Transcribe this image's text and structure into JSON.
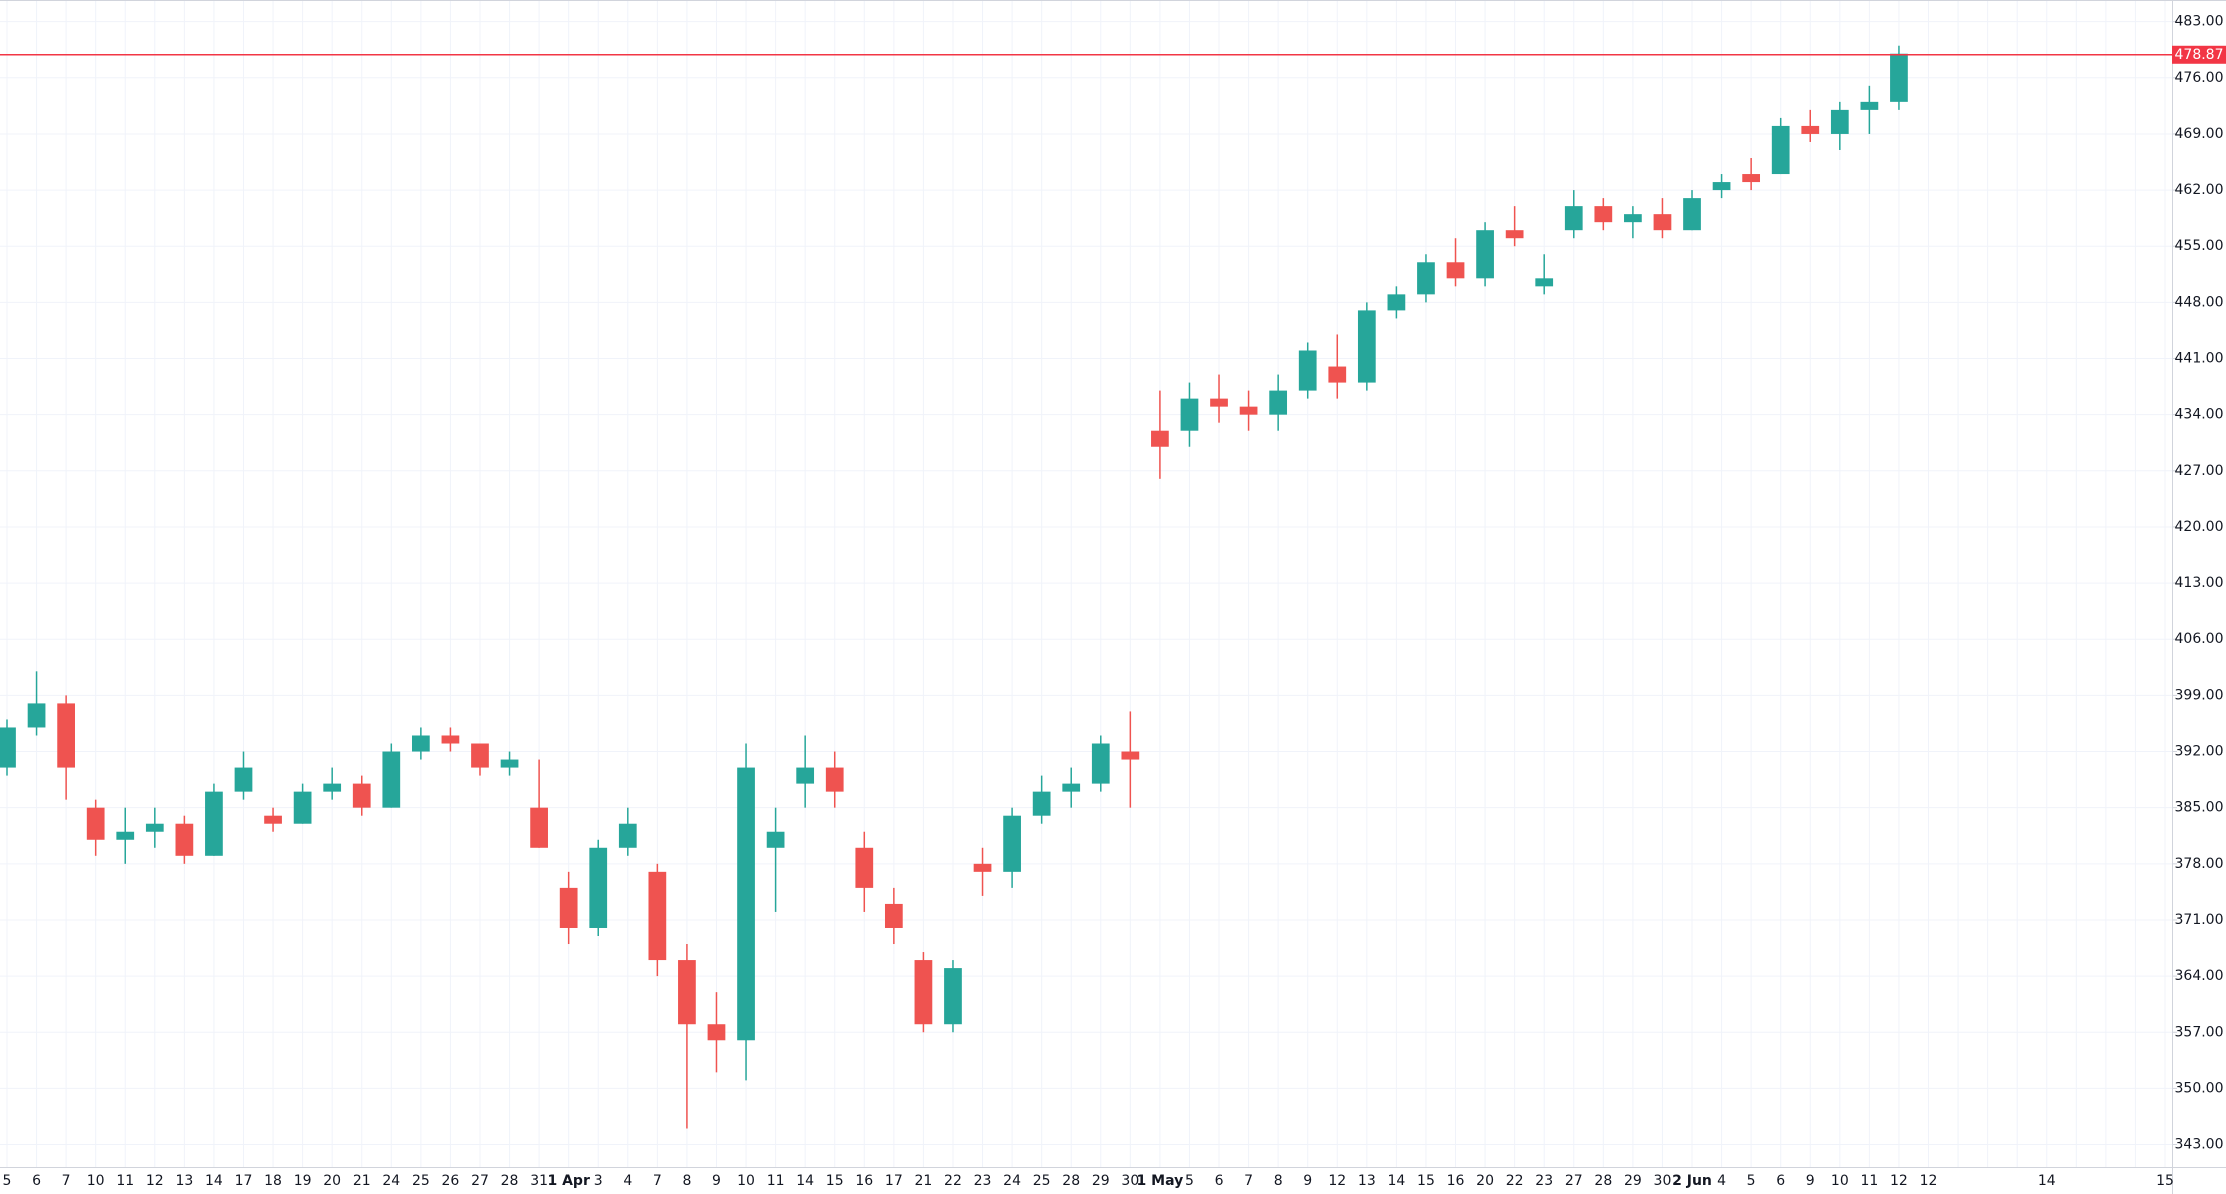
{
  "chart_data": {
    "type": "candlestick",
    "categories": [
      "5",
      "6",
      "7",
      "10",
      "11",
      "12",
      "13",
      "14",
      "17",
      "18",
      "19",
      "20",
      "21",
      "24",
      "25",
      "26",
      "27",
      "28",
      "31",
      "1 Apr",
      "3",
      "4",
      "7",
      "8",
      "9",
      "10",
      "11",
      "14",
      "15",
      "16",
      "17",
      "21",
      "22",
      "23",
      "24",
      "25",
      "28",
      "29",
      "30",
      "1 May",
      "5",
      "6",
      "7",
      "8",
      "9",
      "12",
      "13",
      "14",
      "15",
      "16",
      "20",
      "22",
      "23",
      "27",
      "28",
      "29",
      "30",
      "2 Jun",
      "4",
      "5",
      "6",
      "9",
      "10",
      "11",
      "12",
      "12",
      null,
      null,
      null,
      "14",
      null,
      null,
      null,
      "15"
    ],
    "open": [
      390,
      395,
      398,
      385,
      381,
      382,
      383,
      379,
      387,
      384,
      383,
      387,
      388,
      385,
      392,
      394,
      393,
      390,
      385,
      375,
      370,
      380,
      377,
      366,
      358,
      356,
      380,
      388,
      390,
      380,
      373,
      366,
      358,
      378,
      377,
      384,
      387,
      388,
      392,
      432,
      432,
      436,
      435,
      434,
      437,
      440,
      438,
      447,
      449,
      453,
      451,
      457,
      450,
      457,
      460,
      458,
      459,
      457,
      462,
      464,
      464,
      470,
      469,
      472,
      473,
      null,
      null,
      null,
      null,
      null,
      null,
      null,
      null,
      null
    ],
    "high": [
      396,
      402,
      399,
      386,
      385,
      385,
      384,
      388,
      392,
      385,
      388,
      390,
      389,
      393,
      395,
      395,
      393,
      392,
      391,
      377,
      381,
      385,
      378,
      368,
      362,
      393,
      385,
      394,
      392,
      382,
      375,
      367,
      366,
      380,
      385,
      389,
      390,
      394,
      397,
      437,
      438,
      439,
      437,
      439,
      443,
      444,
      448,
      450,
      454,
      456,
      458,
      460,
      454,
      462,
      461,
      460,
      461,
      462,
      464,
      466,
      471,
      472,
      473,
      475,
      480,
      null,
      null,
      null,
      null,
      null,
      null,
      null,
      null,
      null
    ],
    "low": [
      389,
      394,
      386,
      379,
      378,
      380,
      378,
      379,
      386,
      382,
      383,
      386,
      384,
      385,
      391,
      392,
      389,
      389,
      380,
      368,
      369,
      379,
      364,
      345,
      352,
      351,
      372,
      385,
      385,
      372,
      368,
      357,
      357,
      374,
      375,
      383,
      385,
      387,
      385,
      426,
      430,
      433,
      432,
      432,
      436,
      436,
      437,
      446,
      448,
      450,
      450,
      455,
      449,
      456,
      457,
      456,
      456,
      457,
      461,
      462,
      464,
      468,
      467,
      469,
      472,
      null,
      null,
      null,
      null,
      null,
      null,
      null,
      null,
      null
    ],
    "close": [
      395,
      398,
      390,
      381,
      382,
      383,
      379,
      387,
      390,
      383,
      387,
      388,
      385,
      392,
      394,
      393,
      390,
      391,
      380,
      370,
      380,
      383,
      366,
      358,
      356,
      390,
      382,
      390,
      387,
      375,
      370,
      358,
      365,
      377,
      384,
      387,
      388,
      393,
      391,
      430,
      436,
      435,
      434,
      437,
      442,
      438,
      447,
      449,
      453,
      451,
      457,
      456,
      451,
      460,
      458,
      459,
      457,
      461,
      463,
      463,
      470,
      469,
      472,
      473,
      479,
      null,
      null,
      null,
      null,
      null,
      null,
      null,
      null,
      null
    ],
    "up_color": "#26a69a",
    "down_color": "#ef5350",
    "ylim": [
      340.2,
      485.7
    ],
    "yticks": [
      {
        "value": 343,
        "label": "343.00"
      },
      {
        "value": 350,
        "label": "350.00"
      },
      {
        "value": 357,
        "label": "357.00"
      },
      {
        "value": 364,
        "label": "364.00"
      },
      {
        "value": 371,
        "label": "371.00"
      },
      {
        "value": 378,
        "label": "378.00"
      },
      {
        "value": 385,
        "label": "385.00"
      },
      {
        "value": 392,
        "label": "392.00"
      },
      {
        "value": 399,
        "label": "399.00"
      },
      {
        "value": 406,
        "label": "406.00"
      },
      {
        "value": 413,
        "label": "413.00"
      },
      {
        "value": 420,
        "label": "420.00"
      },
      {
        "value": 427,
        "label": "427.00"
      },
      {
        "value": 434,
        "label": "434.00"
      },
      {
        "value": 441,
        "label": "441.00"
      },
      {
        "value": 448,
        "label": "448.00"
      },
      {
        "value": 455,
        "label": "455.00"
      },
      {
        "value": 462,
        "label": "462.00"
      },
      {
        "value": 469,
        "label": "469.00"
      },
      {
        "value": 476,
        "label": "476.00"
      },
      {
        "value": 483,
        "label": "483.00"
      }
    ],
    "grid": true,
    "price_line": {
      "value": 478.87,
      "label": "478.87",
      "color": "#f23645"
    }
  }
}
